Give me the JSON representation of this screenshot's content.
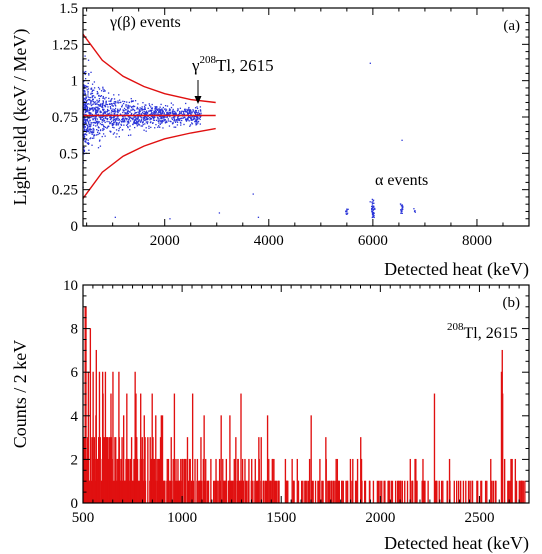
{
  "chart_data": [
    {
      "type": "scatter",
      "panel": "(a)",
      "xlabel": "Detected heat (keV)",
      "ylabel": "Light yield (keV / MeV)",
      "xlim": [
        430,
        9000
      ],
      "ylim": [
        0,
        1.5
      ],
      "xticks": [
        2000,
        4000,
        6000,
        8000
      ],
      "yticks": [
        0,
        0.25,
        0.5,
        0.75,
        1,
        1.25,
        1.5
      ],
      "ytick_labels": [
        "0",
        "0.25",
        "0.5",
        "0.75",
        "1",
        "1.25",
        "1.5"
      ],
      "grid": false,
      "colors": {
        "points": "#2a34d8",
        "band": "#e01010",
        "axis": "#000000"
      },
      "annotations": {
        "gamma_beta": "γ(β) events",
        "tl_gamma": "γ",
        "tl_sup": "208",
        "tl_text": "Tl, 2615",
        "alpha": "α events"
      },
      "band": {
        "x_range": [
          430,
          2980
        ],
        "mean": 0.76,
        "upper_at_x": [
          [
            430,
            1.32
          ],
          [
            800,
            1.14
          ],
          [
            1200,
            1.03
          ],
          [
            1600,
            0.96
          ],
          [
            2000,
            0.91
          ],
          [
            2500,
            0.87
          ],
          [
            2980,
            0.85
          ]
        ],
        "lower_at_x": [
          [
            430,
            0.19
          ],
          [
            800,
            0.37
          ],
          [
            1200,
            0.48
          ],
          [
            1600,
            0.55
          ],
          [
            2000,
            0.6
          ],
          [
            2500,
            0.64
          ],
          [
            2980,
            0.67
          ]
        ]
      },
      "clusters": [
        {
          "name": "γ(β) events",
          "x_range": [
            430,
            2700
          ],
          "y_center": 0.76,
          "count": 1400
        },
        {
          "name": "208Tl 2615",
          "x": 2615,
          "y_range": [
            0.7,
            0.82
          ],
          "count": 25
        },
        {
          "name": "α events 6000",
          "x": 6000,
          "y_range": [
            0.05,
            0.19
          ],
          "count": 45
        },
        {
          "name": "α events 5500",
          "x": 5500,
          "y_range": [
            0.08,
            0.12
          ],
          "count": 10
        },
        {
          "name": "α events 6550",
          "x": 6550,
          "y_range": [
            0.08,
            0.16
          ],
          "count": 18
        },
        {
          "name": "α events 6800",
          "x": 6800,
          "y_range": [
            0.08,
            0.12
          ],
          "count": 4
        }
      ],
      "outliers": [
        [
          3050,
          0.09
        ],
        [
          3800,
          0.06
        ],
        [
          3700,
          0.22
        ],
        [
          6560,
          0.59
        ],
        [
          5950,
          1.12
        ],
        [
          1050,
          0.06
        ],
        [
          2100,
          0.05
        ]
      ]
    },
    {
      "type": "bar",
      "panel": "(b)",
      "xlabel": "Detected heat (keV)",
      "ylabel": "Counts / 2 keV",
      "xlim": [
        500,
        2750
      ],
      "ylim": [
        0,
        10
      ],
      "xticks": [
        500,
        1000,
        1500,
        2000,
        2500
      ],
      "yticks": [
        0,
        2,
        4,
        6,
        8,
        10
      ],
      "bin_width_keV": 2,
      "grid": false,
      "colors": {
        "bars": "#e01010",
        "axis": "#000000"
      },
      "annotations": {
        "tl_sup": "208",
        "tl_text": "Tl, 2615"
      },
      "peaks": [
        {
          "x": 510,
          "count": 9
        },
        {
          "x": 514,
          "count": 9
        },
        {
          "x": 526,
          "count": 6
        },
        {
          "x": 536,
          "count": 8
        },
        {
          "x": 550,
          "count": 6
        },
        {
          "x": 566,
          "count": 7
        },
        {
          "x": 582,
          "count": 6
        },
        {
          "x": 598,
          "count": 6
        },
        {
          "x": 612,
          "count": 6
        },
        {
          "x": 650,
          "count": 6
        },
        {
          "x": 680,
          "count": 6
        },
        {
          "x": 720,
          "count": 5
        },
        {
          "x": 762,
          "count": 6
        },
        {
          "x": 790,
          "count": 5
        },
        {
          "x": 848,
          "count": 5
        },
        {
          "x": 900,
          "count": 4
        },
        {
          "x": 960,
          "count": 5
        },
        {
          "x": 1110,
          "count": 4
        },
        {
          "x": 1196,
          "count": 4
        },
        {
          "x": 1240,
          "count": 4
        },
        {
          "x": 1296,
          "count": 5
        },
        {
          "x": 1430,
          "count": 4
        },
        {
          "x": 1650,
          "count": 4
        },
        {
          "x": 2272,
          "count": 5
        },
        {
          "x": 2614,
          "count": 7
        },
        {
          "x": 2610,
          "count": 6
        },
        {
          "x": 2616,
          "count": 5
        }
      ]
    }
  ]
}
